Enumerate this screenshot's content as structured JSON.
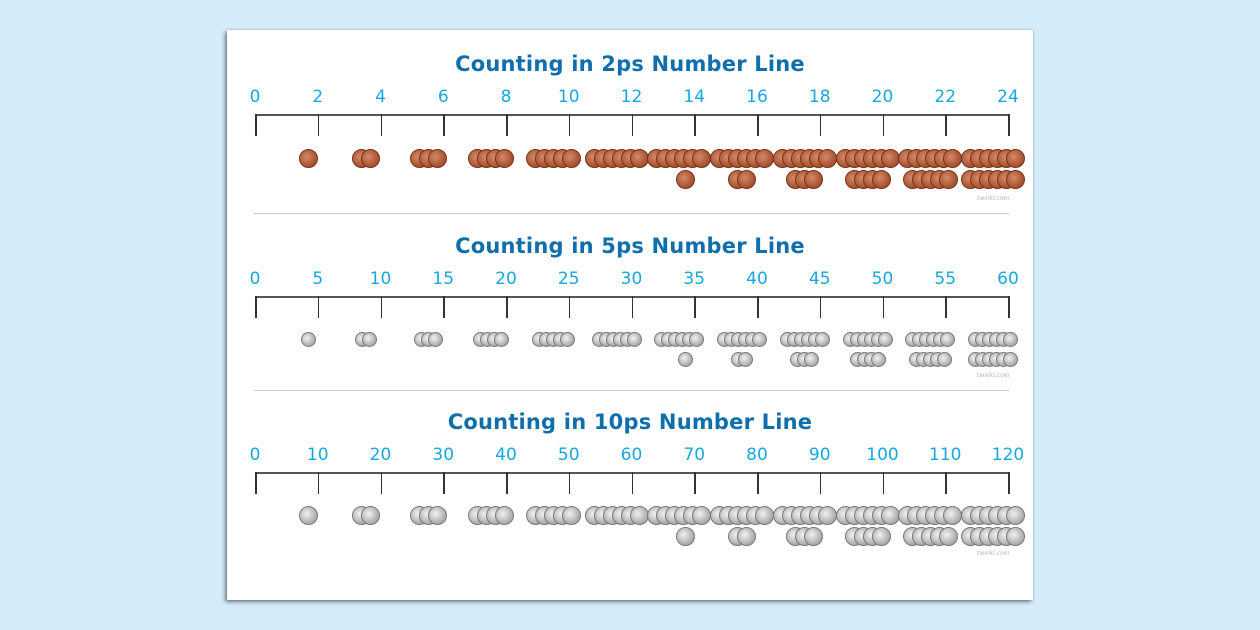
{
  "background_color": "#d4ecfa",
  "title_color": "#0f6fad",
  "tick_label_color": "#17a7e0",
  "number_lines": [
    {
      "title": "Counting in 2ps Number Line",
      "coin": "2p",
      "coin_color": "copper",
      "tick_labels": [
        "0",
        "2",
        "4",
        "6",
        "8",
        "10",
        "12",
        "14",
        "16",
        "18",
        "20",
        "22",
        "24"
      ],
      "coin_counts": [
        1,
        2,
        3,
        4,
        5,
        6,
        7,
        8,
        9,
        10,
        11,
        12
      ],
      "watermark": "twinkl.com"
    },
    {
      "title": "Counting in 5ps Number Line",
      "coin": "5p",
      "coin_color": "silver",
      "tick_labels": [
        "0",
        "5",
        "10",
        "15",
        "20",
        "25",
        "30",
        "35",
        "40",
        "45",
        "50",
        "55",
        "60"
      ],
      "coin_counts": [
        1,
        2,
        3,
        4,
        5,
        6,
        7,
        8,
        9,
        10,
        11,
        12
      ],
      "watermark": "twinkl.com"
    },
    {
      "title": "Counting in 10ps Number Line",
      "coin": "10p",
      "coin_color": "silver",
      "tick_labels": [
        "0",
        "10",
        "20",
        "30",
        "40",
        "50",
        "60",
        "70",
        "80",
        "90",
        "100",
        "110",
        "120"
      ],
      "coin_counts": [
        1,
        2,
        3,
        4,
        5,
        6,
        7,
        8,
        9,
        10,
        11,
        12
      ],
      "watermark": "twinkl.com"
    }
  ]
}
